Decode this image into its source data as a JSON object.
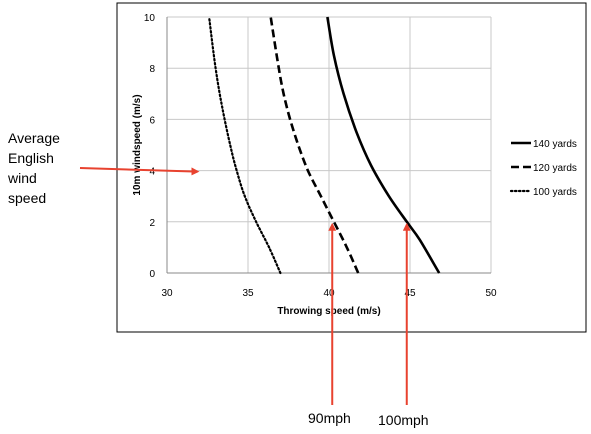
{
  "chart_data": {
    "type": "line",
    "title": "",
    "xlabel": "Throwing speed (m/s)",
    "ylabel": "10m windspeed (m/s)",
    "xlim": [
      30,
      50
    ],
    "ylim": [
      0,
      10
    ],
    "xticks": [
      "30",
      "35",
      "40",
      "45",
      "50"
    ],
    "yticks": [
      "0",
      "2",
      "4",
      "6",
      "8",
      "10"
    ],
    "grid": true,
    "legend_position": "right",
    "series": [
      {
        "name": "140 yards",
        "style": "solid",
        "x": [
          46.8,
          45.6,
          44.8,
          43.7,
          42.6,
          41.7,
          40.9,
          40.3,
          39.9
        ],
        "y": [
          0,
          1.3,
          2,
          3,
          4.2,
          5.5,
          7,
          8.5,
          10
        ]
      },
      {
        "name": "120 yards",
        "style": "dashed",
        "x": [
          41.8,
          41.1,
          40.3,
          39.5,
          38.7,
          38.1,
          37.6,
          37.2,
          36.9,
          36.4
        ],
        "y": [
          0,
          1,
          2,
          3,
          4,
          5,
          6,
          7,
          8,
          10
        ]
      },
      {
        "name": "100 yards",
        "style": "dotted",
        "x": [
          37,
          36.3,
          35.5,
          34.8,
          34.3,
          33.9,
          33.4,
          33,
          32.6
        ],
        "y": [
          0,
          1,
          2,
          3,
          4,
          5,
          6.5,
          8,
          10
        ]
      }
    ],
    "annotations": [
      {
        "text": "Average English wind speed",
        "points_to": {
          "x": 32,
          "y": 4
        }
      },
      {
        "text": "90mph",
        "points_to": {
          "x": 40.2,
          "y": 2
        }
      },
      {
        "text": "100mph",
        "points_to": {
          "x": 44.8,
          "y": 2
        }
      }
    ]
  },
  "annotation_labels": {
    "wind_line1": "Average",
    "wind_line2": "English",
    "wind_line3": "wind",
    "wind_line4": "speed",
    "arrow_90": "90mph",
    "arrow_100": "100mph"
  },
  "colors": {
    "arrow": "#e8422f",
    "gridline": "#c8c8c8",
    "frame": "#000000",
    "series": "#000000"
  }
}
